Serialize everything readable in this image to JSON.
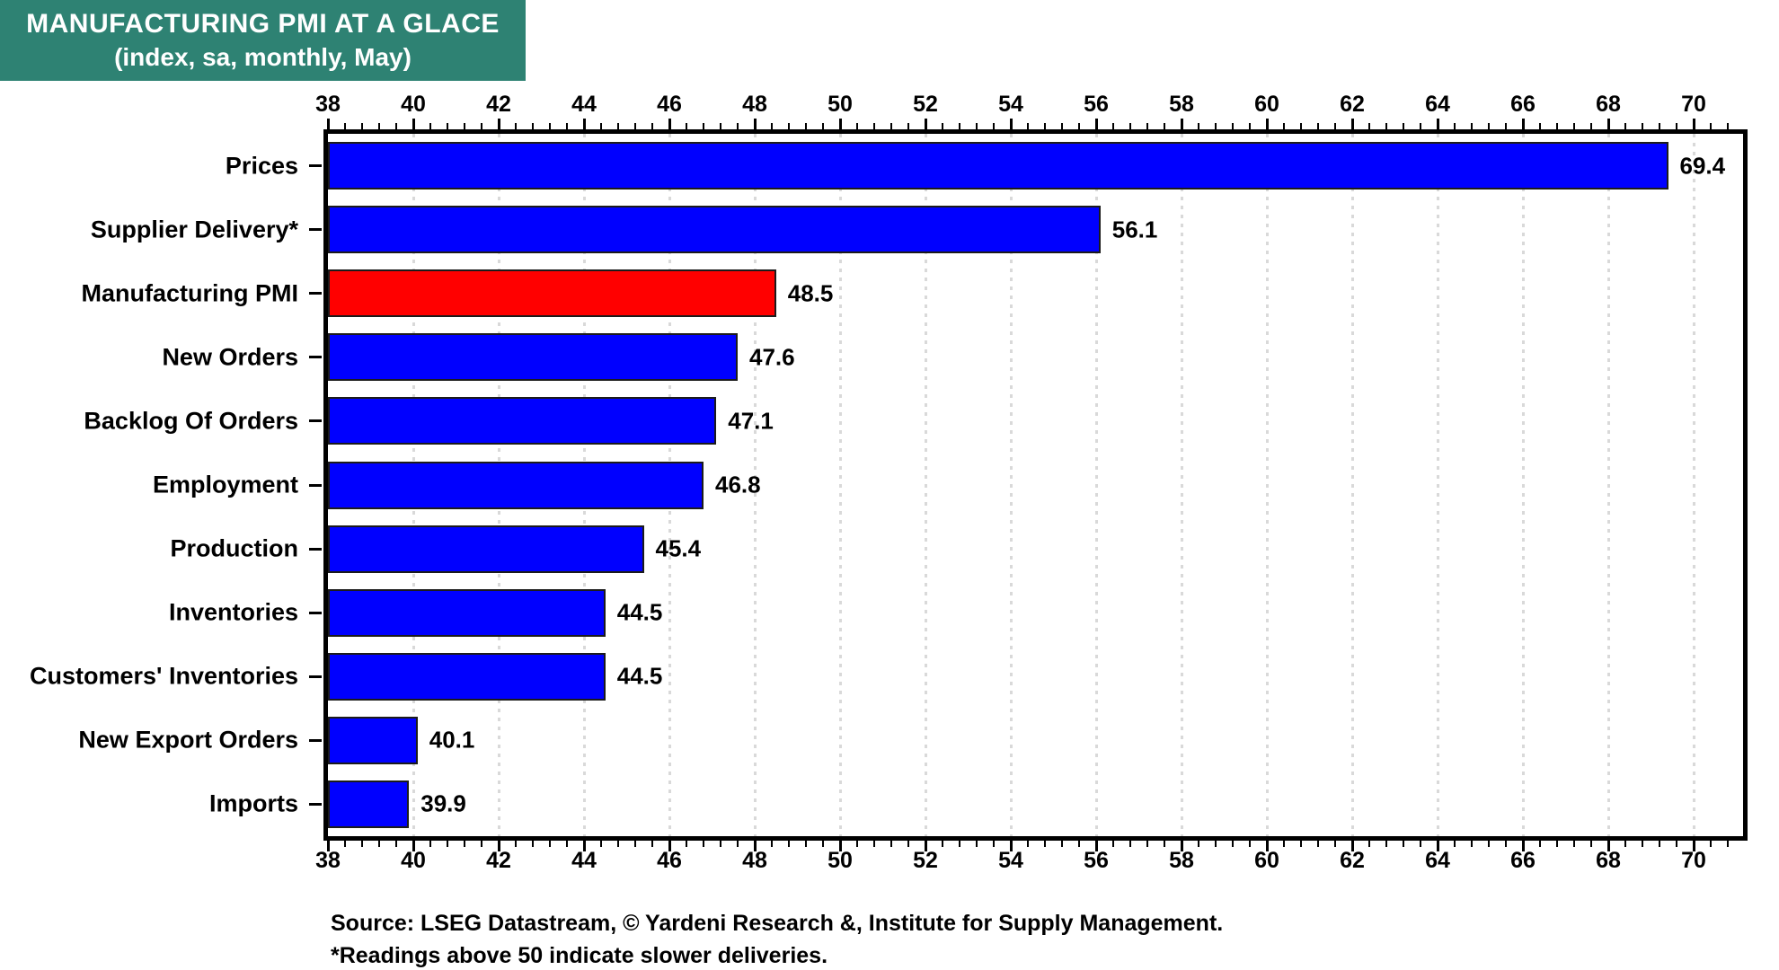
{
  "title": {
    "line1": "MANUFACTURING PMI AT A GLACE",
    "line2": "(index, sa, monthly, May)",
    "bg_color": "#2E8273",
    "text_color": "#FFFFFF"
  },
  "chart_data": {
    "type": "bar",
    "orientation": "horizontal",
    "title": "MANUFACTURING PMI AT A GLACE (index, sa, monthly, May)",
    "categories": [
      "Prices",
      "Supplier Delivery*",
      "Manufacturing PMI",
      "New Orders",
      "Backlog Of Orders",
      "Employment",
      "Production",
      "Inventories",
      "Customers' Inventories",
      "New Export Orders",
      "Imports"
    ],
    "values": [
      69.4,
      56.1,
      48.5,
      47.6,
      47.1,
      46.8,
      45.4,
      44.5,
      44.5,
      40.1,
      39.9
    ],
    "value_labels": [
      "69.4",
      "56.1",
      "48.5",
      "47.6",
      "47.1",
      "46.8",
      "45.4",
      "44.5",
      "44.5",
      "40.1",
      "39.9"
    ],
    "bar_colors": [
      "#0000FF",
      "#0000FF",
      "#FF0000",
      "#0000FF",
      "#0000FF",
      "#0000FF",
      "#0000FF",
      "#0000FF",
      "#0000FF",
      "#0000FF",
      "#0000FF"
    ],
    "default_color": "#0000FF",
    "highlight_color": "#FF0000",
    "highlight_category": "Manufacturing PMI",
    "xlim": [
      38,
      71.2
    ],
    "x_major_ticks": [
      38,
      40,
      42,
      44,
      46,
      48,
      50,
      52,
      54,
      56,
      58,
      60,
      62,
      64,
      66,
      68,
      70
    ],
    "x_minor_step": 0.4,
    "grid": "dotted vertical gridlines at major ticks",
    "axis_label_positions": "top and bottom",
    "bar_border_color": "#1b1b1b",
    "gridline_color": "#D9D9D9"
  },
  "footer": {
    "source_line": "Source: LSEG Datastream, © Yardeni Research &, Institute for Supply Management.",
    "note_line": "*Readings above 50 indicate slower deliveries."
  }
}
